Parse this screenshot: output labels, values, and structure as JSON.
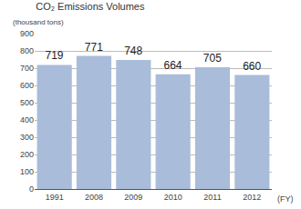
{
  "chart_data": {
    "type": "bar",
    "title": "CO₂ Emissions Volumes",
    "ylabel": "(thousand tons)",
    "xlabel": "(FY)",
    "categories": [
      "1991",
      "2008",
      "2009",
      "2010",
      "2011",
      "2012"
    ],
    "values": [
      719,
      771,
      748,
      664,
      705,
      660
    ],
    "color": "#a9bcd9",
    "ylim": [
      0,
      900
    ],
    "yticks": [
      0,
      100,
      200,
      300,
      400,
      500,
      600,
      700,
      800,
      900
    ],
    "grid": true,
    "data_labels": true
  }
}
